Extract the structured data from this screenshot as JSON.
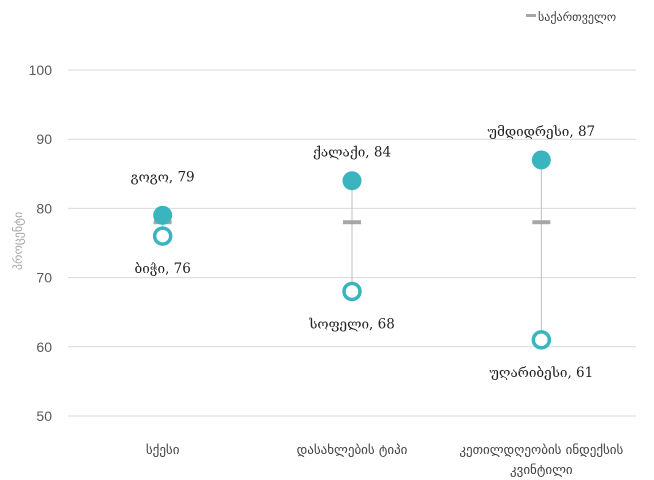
{
  "chart_data": {
    "type": "scatter",
    "ylabel": "პროცენტი",
    "ylim": [
      50,
      100
    ],
    "yticks": [
      50,
      60,
      70,
      80,
      90,
      100
    ],
    "grid": true,
    "legend_position": "top-right",
    "categories": [
      {
        "label": [
          "სქესი"
        ],
        "high": 79,
        "low": 76,
        "high_label": "გოგო, 79",
        "low_label": "ბიჭი, 76",
        "benchmark": 78
      },
      {
        "label": [
          "დასახლების ტიპი"
        ],
        "high": 84,
        "low": 68,
        "high_label": "ქალაქი, 84",
        "low_label": "სოფელი, 68",
        "benchmark": 78
      },
      {
        "label": [
          "კეთილდღეობის ინდექსის",
          "კვინტილი"
        ],
        "high": 87,
        "low": 61,
        "high_label": "უმდიდრესი, 87",
        "low_label": "უღარიბესი, 61",
        "benchmark": 78
      }
    ],
    "series": [
      {
        "name": "საქართველო",
        "role": "benchmark",
        "color": "#a6a6a6"
      }
    ],
    "colors": {
      "marker": "#3ab4be",
      "range_line": "#bfbfbf",
      "grid": "#d9d9d9",
      "benchmark": "#a6a6a6"
    }
  }
}
